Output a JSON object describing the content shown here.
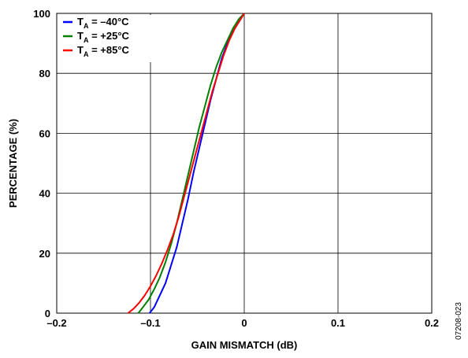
{
  "chart_data": {
    "type": "line",
    "xlabel": "GAIN MISMATCH (dB)",
    "ylabel": "PERCENTAGE (%)",
    "xlim": [
      -0.2,
      0.2
    ],
    "ylim": [
      0,
      100
    ],
    "xticks": [
      -0.2,
      -0.1,
      0,
      0.1,
      0.2
    ],
    "xtick_labels": [
      "–0.2",
      "–0.1",
      "0",
      "0.1",
      "0.2"
    ],
    "yticks": [
      0,
      20,
      40,
      60,
      80,
      100
    ],
    "ytick_labels": [
      "0",
      "20",
      "40",
      "60",
      "80",
      "100"
    ],
    "grid": true,
    "legend_position": "top-left",
    "figure_id": "07208-023",
    "series": [
      {
        "name": "T = –40°C",
        "name_prefix": "T",
        "name_sub": "A",
        "name_suffix": " = –40°C",
        "color": "#0000ff",
        "x": [
          -0.101,
          -0.096,
          -0.09,
          -0.084,
          -0.078,
          -0.072,
          -0.066,
          -0.06,
          -0.054,
          -0.048,
          -0.042,
          -0.036,
          -0.03,
          -0.024,
          -0.018,
          -0.012,
          -0.006,
          0
        ],
        "y": [
          0,
          2,
          6,
          10,
          16,
          22,
          30,
          38,
          47,
          55,
          63,
          71,
          78,
          85,
          90,
          94,
          97,
          100
        ]
      },
      {
        "name": "T = +25°C",
        "name_prefix": "T",
        "name_sub": "A",
        "name_suffix": " = +25°C",
        "color": "#008000",
        "x": [
          -0.113,
          -0.108,
          -0.102,
          -0.096,
          -0.09,
          -0.084,
          -0.078,
          -0.072,
          -0.066,
          -0.06,
          -0.054,
          -0.048,
          -0.042,
          -0.036,
          -0.03,
          -0.024,
          -0.018,
          -0.012,
          -0.006,
          0
        ],
        "y": [
          0,
          2,
          4.5,
          8,
          12,
          17,
          23,
          30,
          38,
          46,
          54,
          62,
          69,
          76,
          82,
          87,
          91,
          95,
          98,
          100
        ]
      },
      {
        "name": "T = +85°C",
        "name_prefix": "T",
        "name_sub": "A",
        "name_suffix": " = +85°C",
        "color": "#ff0000",
        "x": [
          -0.124,
          -0.118,
          -0.112,
          -0.106,
          -0.1,
          -0.094,
          -0.088,
          -0.082,
          -0.076,
          -0.07,
          -0.064,
          -0.058,
          -0.052,
          -0.046,
          -0.04,
          -0.034,
          -0.028,
          -0.022,
          -0.016,
          -0.01,
          -0.004,
          0
        ],
        "y": [
          0,
          1.5,
          3.5,
          6,
          9,
          12.5,
          16.5,
          21,
          26,
          32,
          39,
          46,
          53,
          60,
          67,
          74,
          80,
          86,
          91,
          95,
          98,
          100
        ]
      }
    ]
  }
}
